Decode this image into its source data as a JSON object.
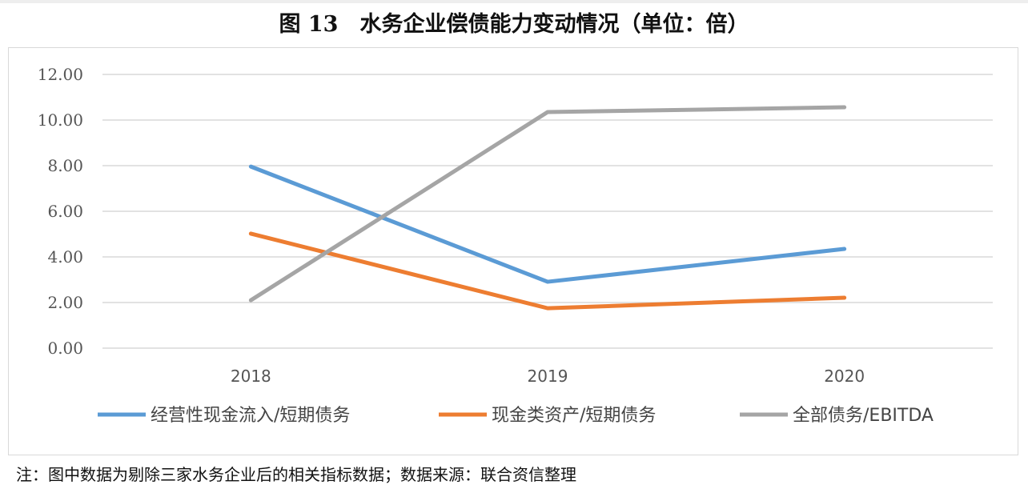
{
  "title": "图 13　水务企业偿债能力变动情况（单位：倍）",
  "note": "注：图中数据为剔除三家水务企业后的相关指标数据；数据来源：联合资信整理",
  "chart_data": {
    "type": "line",
    "title": "图 13　水务企业偿债能力变动情况（单位：倍）",
    "categories": [
      "2018",
      "2019",
      "2020"
    ],
    "ylim": [
      0,
      12
    ],
    "yticks": [
      "0.00",
      "2.00",
      "4.00",
      "6.00",
      "8.00",
      "10.00",
      "12.00"
    ],
    "grid": true,
    "legend": "bottom",
    "series": [
      {
        "name": "经营性现金流入/短期债务",
        "values": [
          7.96,
          2.91,
          4.35
        ],
        "color": "#5b9bd5"
      },
      {
        "name": "现金类资产/短期债务",
        "values": [
          5.02,
          1.75,
          2.21
        ],
        "color": "#ed7d31"
      },
      {
        "name": "全部债务/EBITDA",
        "values": [
          2.1,
          10.35,
          10.56
        ],
        "color": "#a5a5a5"
      }
    ]
  }
}
